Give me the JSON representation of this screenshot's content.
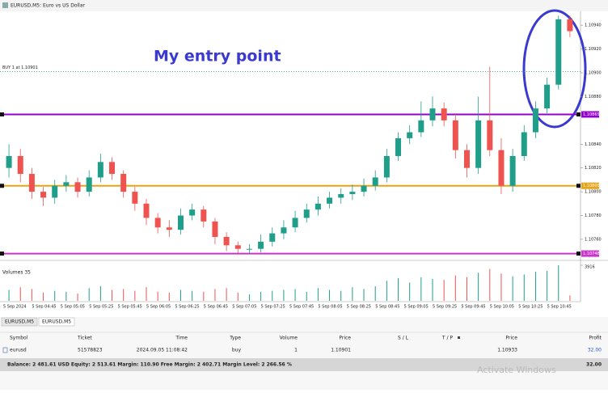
{
  "window": {
    "title": "EURUSD,M5: Euro vs US Dollar"
  },
  "chart_data": {
    "type": "candlestick",
    "annotation": "My entry point",
    "order_line": {
      "label": "BUY 1 at 1.10901",
      "value": 1.10901,
      "color": "#2aa876"
    },
    "ylim": [
      1.10745,
      1.10951
    ],
    "yticks": [
      {
        "value": 1.1094,
        "label": "1.10940"
      },
      {
        "value": 1.1092,
        "label": "1.10920"
      },
      {
        "value": 1.109,
        "label": "1.10900"
      },
      {
        "value": 1.1088,
        "label": "1.10880"
      },
      {
        "value": 1.1084,
        "label": "1.10840"
      },
      {
        "value": 1.1082,
        "label": "1.10820"
      },
      {
        "value": 1.108,
        "label": "1.10800"
      },
      {
        "value": 1.1078,
        "label": "1.10780"
      },
      {
        "value": 1.1076,
        "label": "1.10760"
      }
    ],
    "levels": [
      {
        "value": 1.10865,
        "label": "1.10865",
        "color": "#9400d3"
      },
      {
        "value": 1.10805,
        "label": "1.10805",
        "color": "#e8a317"
      },
      {
        "value": 1.10748,
        "label": "1.10748",
        "color": "#cc33cc"
      }
    ],
    "up_color": "#1f9e8a",
    "down_color": "#ef5350",
    "candles": [
      [
        1.1082,
        1.1084,
        1.10812,
        1.1083
      ],
      [
        1.1083,
        1.10836,
        1.10808,
        1.10815
      ],
      [
        1.10815,
        1.1082,
        1.10794,
        1.108
      ],
      [
        1.108,
        1.10804,
        1.10788,
        1.10795
      ],
      [
        1.10795,
        1.1081,
        1.1079,
        1.10805
      ],
      [
        1.10805,
        1.10814,
        1.108,
        1.10808
      ],
      [
        1.10808,
        1.10812,
        1.10795,
        1.108
      ],
      [
        1.108,
        1.10818,
        1.10796,
        1.10812
      ],
      [
        1.10812,
        1.10832,
        1.10808,
        1.10825
      ],
      [
        1.10825,
        1.10829,
        1.1081,
        1.10815
      ],
      [
        1.10815,
        1.10818,
        1.10795,
        1.108
      ],
      [
        1.108,
        1.10804,
        1.10784,
        1.1079
      ],
      [
        1.1079,
        1.10794,
        1.10772,
        1.10778
      ],
      [
        1.10778,
        1.10782,
        1.10765,
        1.1077
      ],
      [
        1.1077,
        1.10776,
        1.10762,
        1.10768
      ],
      [
        1.10768,
        1.10786,
        1.10764,
        1.1078
      ],
      [
        1.1078,
        1.1079,
        1.10776,
        1.10785
      ],
      [
        1.10785,
        1.10788,
        1.1077,
        1.10775
      ],
      [
        1.10775,
        1.10778,
        1.10756,
        1.10762
      ],
      [
        1.10762,
        1.10766,
        1.1075,
        1.10755
      ],
      [
        1.10755,
        1.10758,
        1.10748,
        1.10752
      ],
      [
        1.10752,
        1.10756,
        1.10748,
        1.10752
      ],
      [
        1.10752,
        1.10764,
        1.10749,
        1.10758
      ],
      [
        1.10758,
        1.1077,
        1.10754,
        1.10765
      ],
      [
        1.10765,
        1.10776,
        1.1076,
        1.1077
      ],
      [
        1.1077,
        1.10784,
        1.10766,
        1.10778
      ],
      [
        1.10778,
        1.1079,
        1.10774,
        1.10785
      ],
      [
        1.10785,
        1.10796,
        1.1078,
        1.1079
      ],
      [
        1.1079,
        1.108,
        1.10786,
        1.10795
      ],
      [
        1.10795,
        1.10803,
        1.1079,
        1.10798
      ],
      [
        1.10798,
        1.10806,
        1.10793,
        1.108
      ],
      [
        1.108,
        1.10811,
        1.10796,
        1.10805
      ],
      [
        1.10805,
        1.10818,
        1.10801,
        1.10812
      ],
      [
        1.10812,
        1.10836,
        1.10808,
        1.1083
      ],
      [
        1.1083,
        1.1085,
        1.10826,
        1.10845
      ],
      [
        1.10845,
        1.10856,
        1.1084,
        1.1085
      ],
      [
        1.1085,
        1.10876,
        1.10846,
        1.1086
      ],
      [
        1.1086,
        1.1088,
        1.10855,
        1.1087
      ],
      [
        1.1087,
        1.10875,
        1.10855,
        1.1086
      ],
      [
        1.1086,
        1.10866,
        1.10828,
        1.10835
      ],
      [
        1.10835,
        1.1084,
        1.10812,
        1.1082
      ],
      [
        1.1082,
        1.1088,
        1.10815,
        1.1086
      ],
      [
        1.1086,
        1.10905,
        1.1083,
        1.10835
      ],
      [
        1.10835,
        1.10845,
        1.10798,
        1.10805
      ],
      [
        1.10805,
        1.10836,
        1.108,
        1.1083
      ],
      [
        1.1083,
        1.10856,
        1.10826,
        1.1085
      ],
      [
        1.1085,
        1.10876,
        1.10845,
        1.1087
      ],
      [
        1.1087,
        1.10896,
        1.10866,
        1.1089
      ],
      [
        1.1089,
        1.10948,
        1.10886,
        1.10945
      ],
      [
        1.10945,
        1.10948,
        1.1093,
        1.10935
      ]
    ],
    "x_labels": [
      "5 Sep 2024",
      "5 Sep 04:45",
      "5 Sep 05:05",
      "5 Sep 05:25",
      "5 Sep 05:45",
      "5 Sep 06:05",
      "5 Sep 06:25",
      "5 Sep 06:45",
      "5 Sep 07:05",
      "5 Sep 07:25",
      "5 Sep 07:45",
      "5 Sep 08:05",
      "5 Sep 08:25",
      "5 Sep 08:45",
      "5 Sep 09:05",
      "5 Sep 09:25",
      "5 Sep 09:45",
      "5 Sep 10:05",
      "5 Sep 10:25",
      "5 Sep 10:45"
    ],
    "volumes": {
      "label": "Volumes 35",
      "ylim": [
        0,
        3916
      ],
      "yticks": [
        3916
      ],
      "values": [
        1200,
        1500,
        1300,
        900,
        1100,
        1000,
        800,
        1400,
        1600,
        1200,
        1300,
        1100,
        1500,
        1000,
        900,
        1200,
        1100,
        1000,
        1300,
        1400,
        900,
        700,
        1000,
        1100,
        1200,
        1300,
        1000,
        1400,
        1200,
        1100,
        1500,
        1300,
        1600,
        2200,
        2500,
        2000,
        2600,
        2400,
        2300,
        2800,
        2600,
        3100,
        3500,
        3000,
        2700,
        2900,
        3200,
        3300,
        3916,
        600
      ]
    }
  },
  "tabs": [
    "EURUSD,M5",
    "EURUSD,M5"
  ],
  "table": {
    "headers": [
      "Symbol",
      "Ticket",
      "Time",
      "Type",
      "Volume",
      "Price",
      "S / L",
      "T / P",
      "Price",
      "Profit"
    ],
    "row": {
      "symbol": "eurusd",
      "ticket": "51578823",
      "time": "2024.09.05 11:08:42",
      "type": "buy",
      "volume": "1",
      "open_price": "1.10901",
      "price": "1.10933",
      "profit": "32.00"
    }
  },
  "status": {
    "balance": "Balance: 2 481.61 USD  Equity: 2 513.61  Margin: 110.90  Free Margin: 2 402.71  Margin Level: 2 266.56 %",
    "profit": "32.00"
  },
  "watermark": "Activate Windows"
}
